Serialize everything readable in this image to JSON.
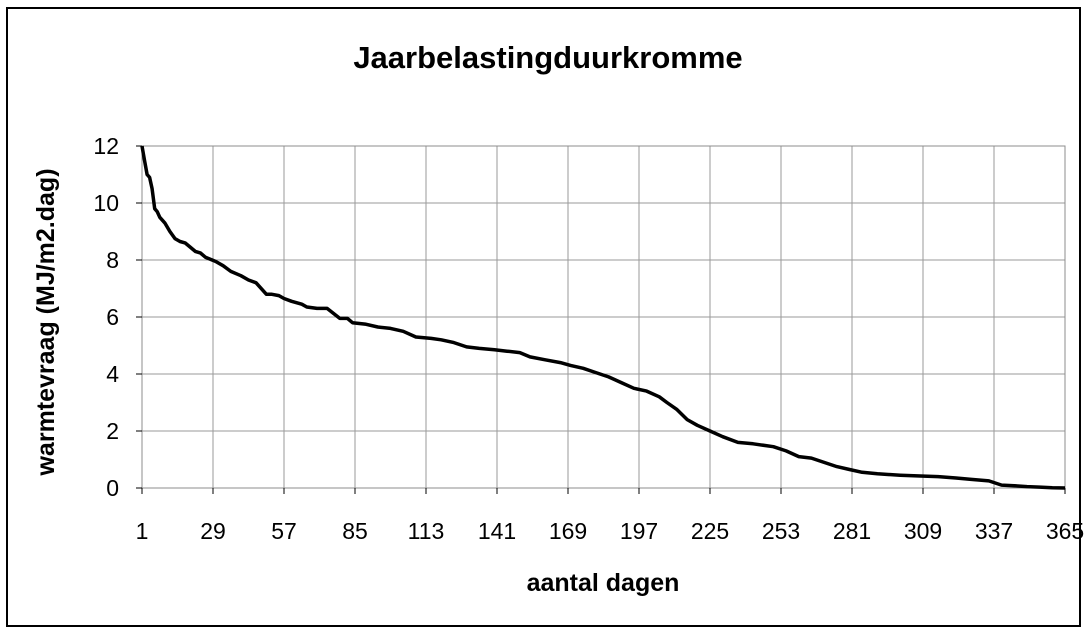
{
  "chart_data": {
    "type": "line",
    "title": "Jaarbelastingduurkromme",
    "xlabel": "aantal dagen",
    "ylabel": "warmtevraag (MJ/m2.dag)",
    "xlim": [
      1,
      365
    ],
    "ylim": [
      0,
      12
    ],
    "grid": true,
    "legend": "none",
    "x_tick_labels": [
      "1",
      "29",
      "57",
      "85",
      "113",
      "141",
      "169",
      "197",
      "225",
      "253",
      "281",
      "309",
      "337",
      "365"
    ],
    "y_tick_labels": [
      "0",
      "2",
      "4",
      "6",
      "8",
      "10",
      "12"
    ],
    "series": [
      {
        "color": "#000000",
        "x": [
          1,
          2,
          3,
          4,
          5,
          6,
          7,
          8,
          10,
          12,
          14,
          16,
          18,
          22,
          24,
          26,
          30,
          33,
          36,
          40,
          43,
          46,
          50,
          52,
          55,
          57,
          60,
          64,
          66,
          70,
          74,
          79,
          82,
          84,
          89,
          94,
          99,
          104,
          109,
          115,
          119,
          124,
          129,
          134,
          140,
          145,
          150,
          154,
          160,
          166,
          170,
          175,
          180,
          185,
          190,
          195,
          200,
          205,
          208,
          212,
          216,
          220,
          225,
          230,
          236,
          242,
          250,
          255,
          260,
          265,
          270,
          275,
          280,
          285,
          291,
          300,
          308,
          315,
          322,
          328,
          335,
          340,
          345,
          350,
          355,
          360,
          365
        ],
        "y": [
          12.0,
          11.5,
          11.0,
          10.9,
          10.5,
          9.8,
          9.7,
          9.5,
          9.3,
          9.0,
          8.75,
          8.65,
          8.6,
          8.3,
          8.25,
          8.1,
          7.95,
          7.8,
          7.6,
          7.45,
          7.3,
          7.2,
          6.8,
          6.8,
          6.75,
          6.65,
          6.55,
          6.45,
          6.35,
          6.3,
          6.3,
          5.95,
          5.95,
          5.8,
          5.75,
          5.65,
          5.6,
          5.5,
          5.3,
          5.25,
          5.2,
          5.1,
          4.95,
          4.9,
          4.85,
          4.8,
          4.75,
          4.6,
          4.5,
          4.4,
          4.3,
          4.2,
          4.05,
          3.9,
          3.7,
          3.5,
          3.4,
          3.2,
          3.0,
          2.75,
          2.4,
          2.2,
          2.0,
          1.8,
          1.6,
          1.55,
          1.45,
          1.3,
          1.1,
          1.05,
          0.9,
          0.75,
          0.65,
          0.55,
          0.5,
          0.45,
          0.42,
          0.4,
          0.35,
          0.3,
          0.25,
          0.1,
          0.08,
          0.05,
          0.03,
          0.01,
          0.0
        ]
      }
    ]
  }
}
